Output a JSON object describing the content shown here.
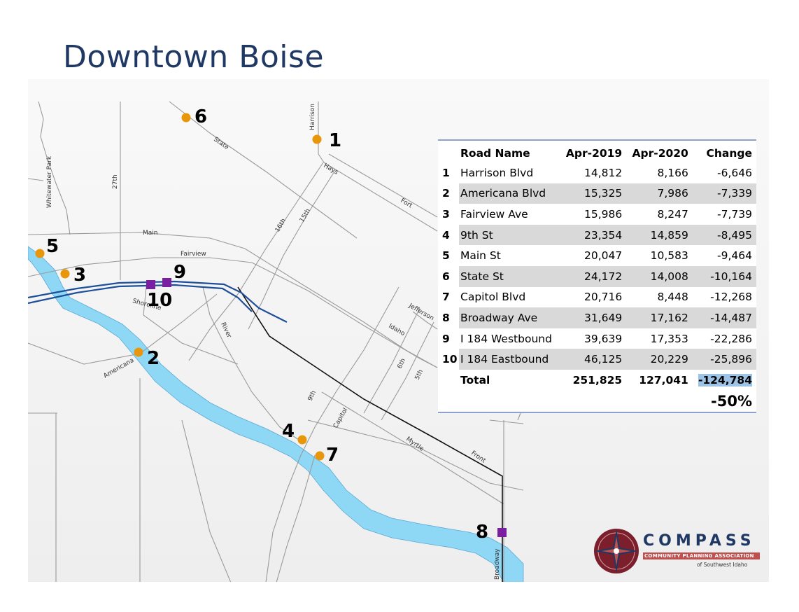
{
  "title": "Downtown Boise",
  "roads": {
    "harrison": "Harrison",
    "state": "State",
    "whitewater": "Whitewater Park",
    "twentyseventh": "27th",
    "hays": "Hays",
    "fort": "Fort",
    "sixteenth": "16th",
    "fifteenth": "15th",
    "main": "Main",
    "fairview": "Fairview",
    "shoreline": "Shoreline",
    "river": "River",
    "jefferson": "Jefferson",
    "idaho": "Idaho",
    "americana": "Americana",
    "sixth": "6th",
    "fifth": "5th",
    "ninth": "9th",
    "capitol": "Capitol",
    "myrtle": "Myrtle",
    "front": "Front",
    "broadway": "Broadway"
  },
  "points": {
    "p1": "1",
    "p2": "2",
    "p3": "3",
    "p4": "4",
    "p5": "5",
    "p6": "6",
    "p7": "7",
    "p8": "8",
    "p9": "9",
    "p10": "10"
  },
  "colors": {
    "title": "#1f3864",
    "orange_marker": "#e8960c",
    "purple_marker": "#7b1fa2",
    "river": "#8fd8f5",
    "interstate": "#1e4f99",
    "railroad": "#111111",
    "roads": "#9a9a9a"
  },
  "table": {
    "headers": [
      "Road Name",
      "Apr-2019",
      "Apr-2020",
      "Change"
    ],
    "rows": [
      {
        "num": "1",
        "name": "Harrison Blvd",
        "apr2019": "14,812",
        "apr2020": "8,166",
        "change": "-6,646"
      },
      {
        "num": "2",
        "name": "Americana Blvd",
        "apr2019": "15,325",
        "apr2020": "7,986",
        "change": "-7,339"
      },
      {
        "num": "3",
        "name": "Fairview Ave",
        "apr2019": "15,986",
        "apr2020": "8,247",
        "change": "-7,739"
      },
      {
        "num": "4",
        "name": "9th St",
        "apr2019": "23,354",
        "apr2020": "14,859",
        "change": "-8,495"
      },
      {
        "num": "5",
        "name": "Main St",
        "apr2019": "20,047",
        "apr2020": "10,583",
        "change": "-9,464"
      },
      {
        "num": "6",
        "name": "State St",
        "apr2019": "24,172",
        "apr2020": "14,008",
        "change": "-10,164"
      },
      {
        "num": "7",
        "name": "Capitol Blvd",
        "apr2019": "20,716",
        "apr2020": "8,448",
        "change": "-12,268"
      },
      {
        "num": "8",
        "name": "Broadway Ave",
        "apr2019": "31,649",
        "apr2020": "17,162",
        "change": "-14,487"
      },
      {
        "num": "9",
        "name": "I 184 Westbound",
        "apr2019": "39,639",
        "apr2020": "17,353",
        "change": "-22,286"
      },
      {
        "num": "10",
        "name": "I 184 Eastbound",
        "apr2019": "46,125",
        "apr2020": "20,229",
        "change": "-25,896"
      }
    ],
    "total": {
      "label": "Total",
      "apr2019": "251,825",
      "apr2020": "127,041",
      "change": "-124,784"
    },
    "percent": "-50%"
  },
  "logo": {
    "name": "COMPASS",
    "subtitle": "COMMUNITY PLANNING ASSOCIATION",
    "region": "of Southwest Idaho"
  }
}
